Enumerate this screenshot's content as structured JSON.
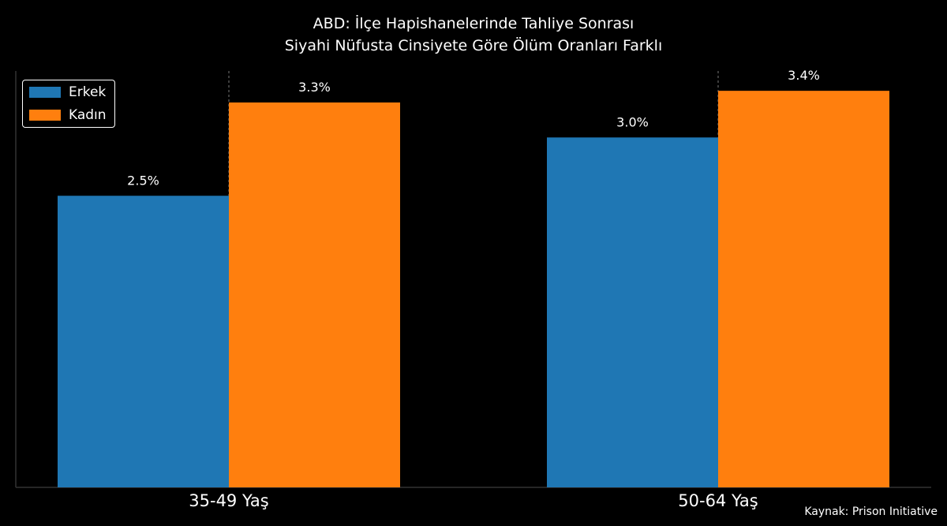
{
  "title_lines": [
    "ABD: İlçe Hapishanelerinde Tahliye Sonrası",
    "Siyahi Nüfusta Cinsiyete Göre Ölüm Oranları Farklı"
  ],
  "source": "Kaynak: Prison Initiative",
  "chart_data": {
    "type": "bar",
    "title": "ABD: İlçe Hapishanelerinde Tahliye Sonrası\nSiyahi Nüfusta Cinsiyete Göre Ölüm Oranları Farklı",
    "categories": [
      "35-49 Yaş",
      "50-64 Yaş"
    ],
    "series": [
      {
        "name": "Erkek",
        "values": [
          2.5,
          3.0
        ],
        "labels": [
          "2.5%",
          "3.0%"
        ],
        "color": "#1f77b4"
      },
      {
        "name": "Kadın",
        "values": [
          3.3,
          3.4
        ],
        "labels": [
          "3.3%",
          "3.4%"
        ],
        "color": "#ff7f0e"
      }
    ],
    "ylim": [
      0,
      3.57
    ],
    "legend": "top-left",
    "grid": false,
    "background": "#000000"
  }
}
